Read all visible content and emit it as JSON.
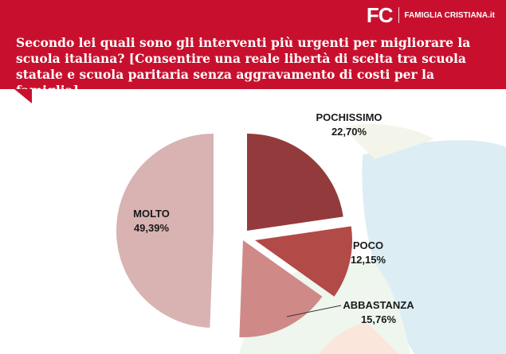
{
  "header": {
    "logo": "FC",
    "brand": "FAMIGLIA CRISTIANA.it",
    "title": "Secondo lei quali sono gli interventi più urgenti per migliorare la scuola italiana? [Consentire una reale libertà di scelta tra scuola statale e scuola paritaria senza aggravamento di costi per la famiglia]"
  },
  "chart_data": {
    "type": "pie",
    "title": "Secondo lei quali sono gli interventi più urgenti per migliorare la scuola italiana? [Consentire una reale libertà di scelta tra scuola statale e scuola paritaria senza aggravamento di costi per la famiglia]",
    "categories": [
      "POCHISSIMO",
      "POCO",
      "ABBASTANZA",
      "MOLTO"
    ],
    "values": [
      22.7,
      12.15,
      15.76,
      49.39
    ],
    "value_labels": [
      "22,70%",
      "12,15%",
      "15,76%",
      "49,39%"
    ],
    "colors": [
      "#933b3c",
      "#b24a48",
      "#cf8a88",
      "#d9b2b2"
    ],
    "exploded": true,
    "legend": "none"
  }
}
